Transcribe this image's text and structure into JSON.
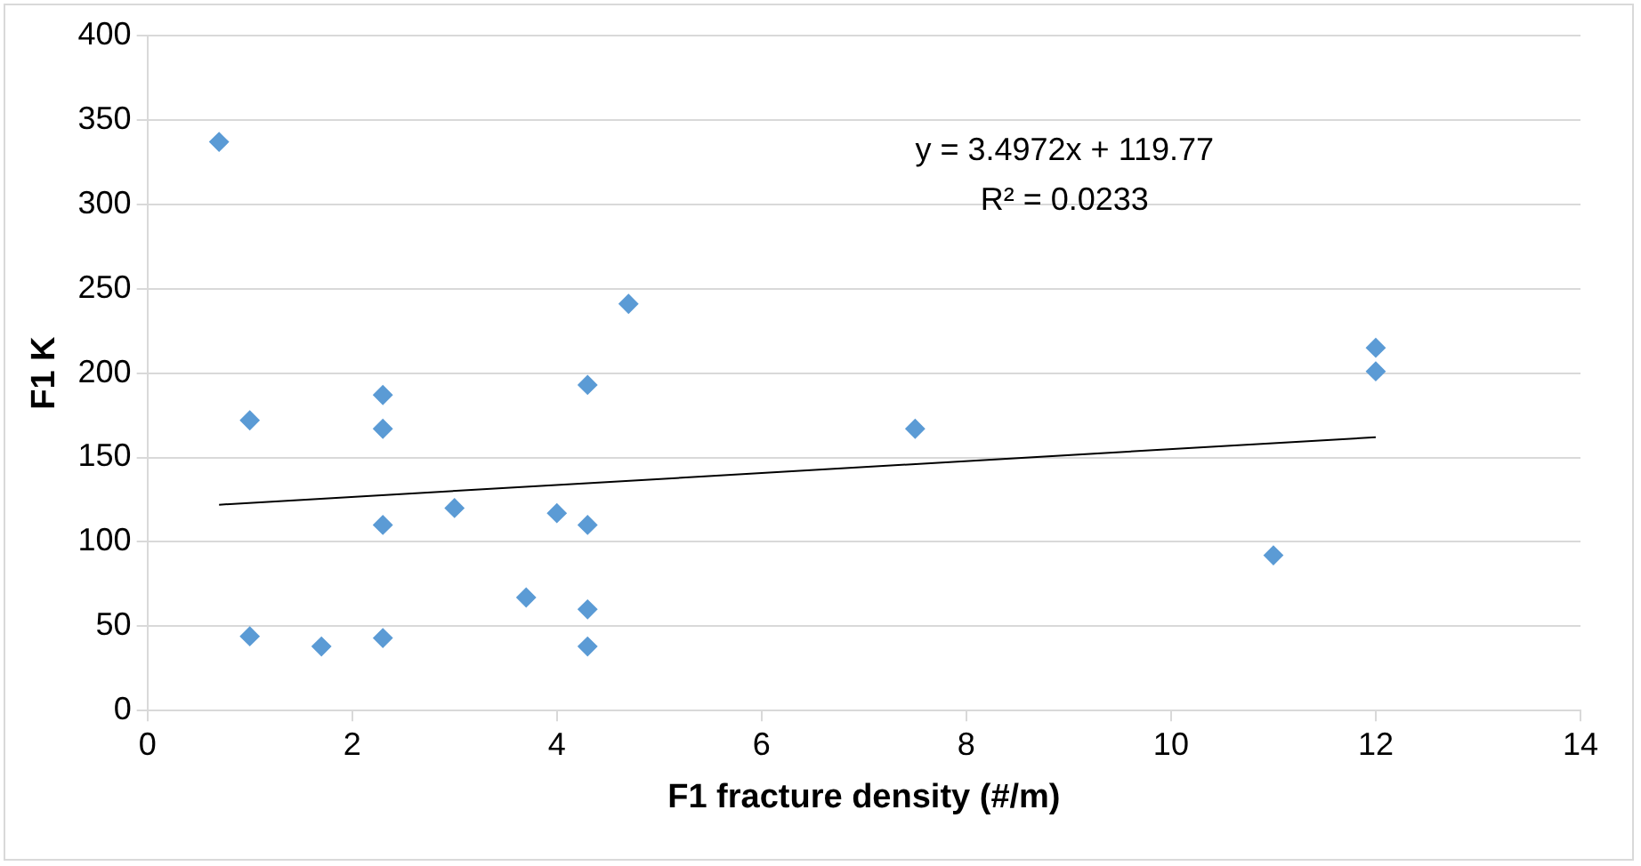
{
  "chart_data": {
    "type": "scatter",
    "xlabel": "F1 fracture density (#/m)",
    "ylabel": "F1 K",
    "xlim": [
      0,
      14
    ],
    "xticks": [
      0,
      2,
      4,
      6,
      8,
      10,
      12,
      14
    ],
    "ylim": [
      0,
      400
    ],
    "yticks": [
      0,
      50,
      100,
      150,
      200,
      250,
      300,
      350,
      400
    ],
    "grid": "y",
    "marker": "diamond",
    "annotations": [
      "y = 3.4972x + 119.77",
      "R² = 0.0233"
    ],
    "series": [
      {
        "color": "#5b9bd5",
        "x": [
          0.7,
          1,
          1,
          1.7,
          2.3,
          2.3,
          2.3,
          2.3,
          3,
          3.7,
          4,
          4.3,
          4.3,
          4.3,
          4.3,
          4.7,
          7.5,
          11,
          12,
          12
        ],
        "values": [
          337,
          172,
          44,
          38,
          187,
          167,
          110,
          43,
          120,
          67,
          117,
          193,
          110,
          60,
          38,
          241,
          167,
          92,
          215,
          201
        ]
      },
      {
        "type": "line",
        "color": "#000000",
        "marker": "none",
        "x": [
          0.7,
          12
        ],
        "values": [
          122,
          162
        ]
      }
    ]
  }
}
